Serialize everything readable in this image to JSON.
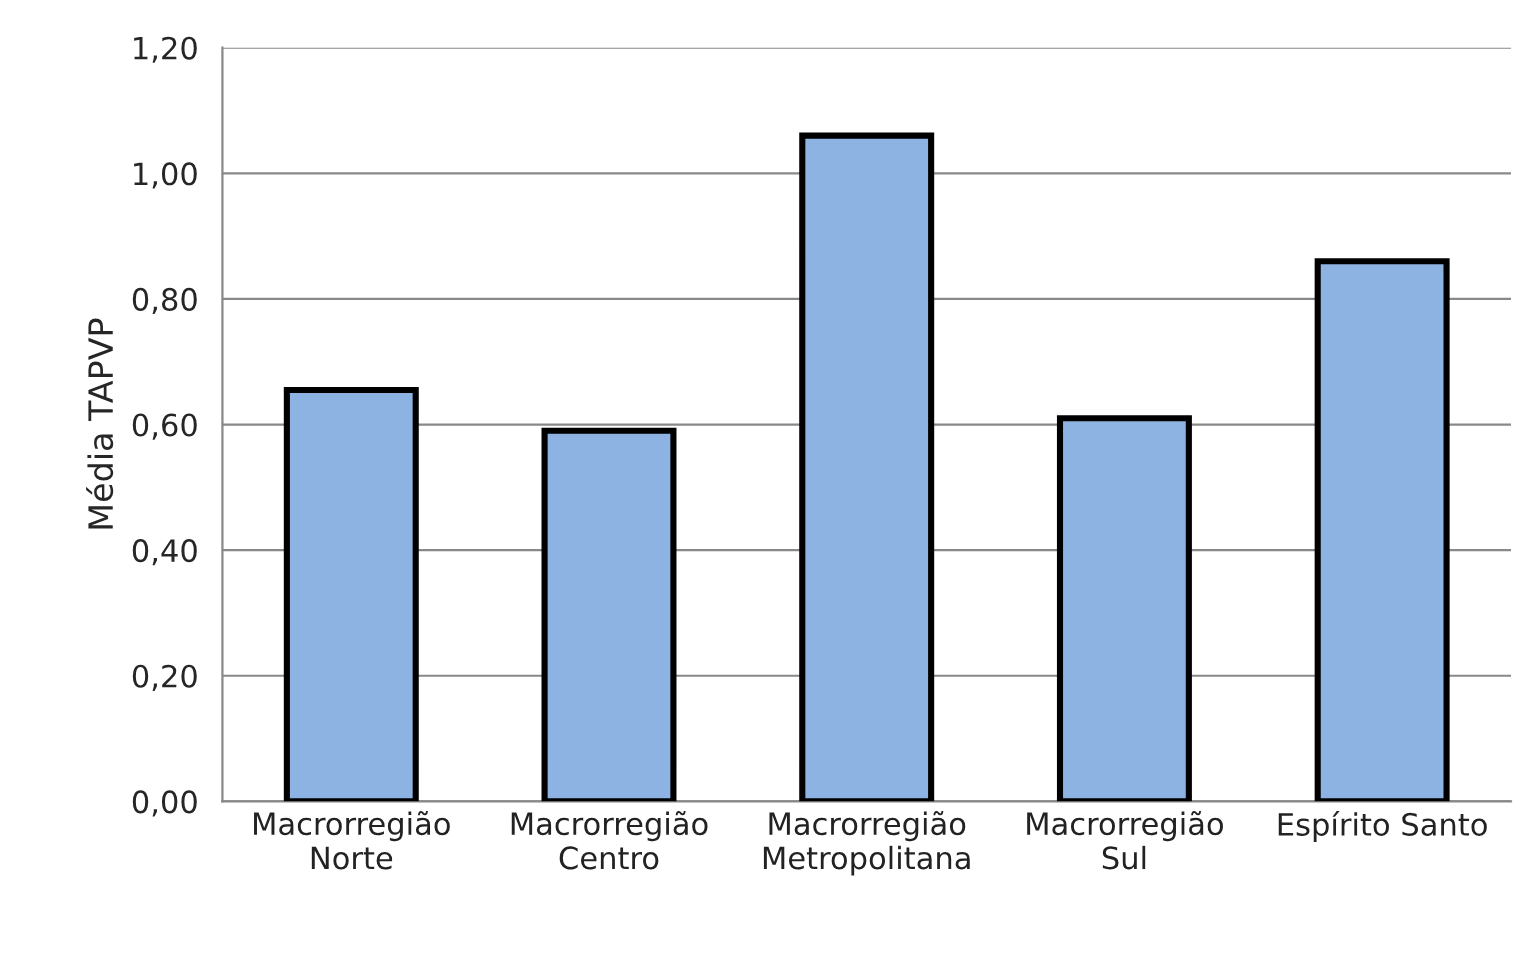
{
  "chart_data": {
    "type": "bar",
    "ylabel": "Média TAPVP",
    "categories": [
      "Macrorregião\nNorte",
      "Macrorregião\nCentro",
      "Macrorregião\nMetropolitana",
      "Macrorregião\nSul",
      "Espírito Santo"
    ],
    "values": [
      0.655,
      0.59,
      1.06,
      0.61,
      0.86
    ],
    "color": "#8db3e2",
    "ylim": [
      0,
      1.2
    ],
    "yticks": [
      {
        "value": 0,
        "label": "0,00"
      },
      {
        "value": 0.2,
        "label": "0,20"
      },
      {
        "value": 0.4,
        "label": "0,40"
      },
      {
        "value": 0.6,
        "label": "0,60"
      },
      {
        "value": 0.8,
        "label": "0,80"
      },
      {
        "value": 1.0,
        "label": "1,00"
      },
      {
        "value": 1.2,
        "label": "1,20"
      }
    ],
    "grid": "y"
  }
}
